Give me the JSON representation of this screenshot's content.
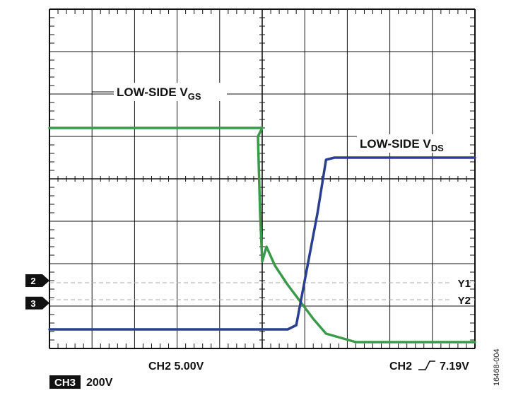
{
  "chart_data": {
    "type": "line",
    "title": "",
    "grid": true,
    "x_divisions": 10,
    "y_divisions": 8,
    "series": [
      {
        "name": "LOW-SIDE VGS",
        "color": "#3a9a4a",
        "channel_marker": "2",
        "x": [
          0,
          5.0,
          4.9,
          4.95,
          5.0,
          5.1,
          5.3,
          5.6,
          5.9,
          6.2,
          6.5,
          7.2,
          10
        ],
        "y": [
          5.2,
          5.2,
          5.0,
          3.2,
          2.05,
          2.4,
          1.95,
          1.5,
          1.1,
          0.7,
          0.35,
          0.15,
          0.15
        ],
        "annotation": {
          "main": "LOW-SIDE V",
          "sub": "GS"
        }
      },
      {
        "name": "LOW-SIDE VDS",
        "color": "#2a3f8f",
        "channel_marker": "3",
        "x": [
          0,
          5.6,
          5.8,
          6.3,
          6.5,
          6.7,
          7.0,
          10
        ],
        "y": [
          0.45,
          0.45,
          0.55,
          3.2,
          4.45,
          4.5,
          4.5,
          4.5
        ],
        "annotation": {
          "main": "LOW-SIDE V",
          "sub": "DS"
        }
      }
    ],
    "cursors": [
      {
        "name": "Y1",
        "y": 1.55
      },
      {
        "name": "Y2",
        "y": 1.15
      }
    ],
    "readouts": {
      "ch2_scale": "CH2 5.00V",
      "trigger_prefix": "CH2",
      "trigger_level": "7.19V",
      "ch3_tag": "CH3",
      "ch3_scale": "200V"
    }
  },
  "figure_id": "16468-004",
  "markers": {
    "ch2": "2",
    "ch3": "3"
  }
}
